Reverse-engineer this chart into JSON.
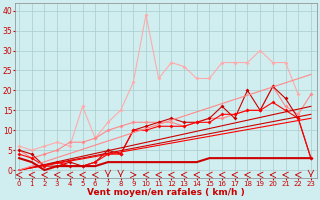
{
  "bg_color": "#d0eef0",
  "grid_color": "#aacccc",
  "xlabel": "Vent moyen/en rafales ( km/h )",
  "xlabel_color": "#cc0000",
  "xlabel_fontsize": 6.5,
  "xtick_fontsize": 5.0,
  "ytick_fontsize": 5.5,
  "ylim": [
    -2,
    42
  ],
  "xlim": [
    -0.3,
    23.5
  ],
  "xticks": [
    0,
    1,
    2,
    3,
    4,
    5,
    6,
    7,
    8,
    9,
    10,
    11,
    12,
    13,
    14,
    15,
    16,
    17,
    18,
    19,
    20,
    21,
    22,
    23
  ],
  "yticks": [
    0,
    5,
    10,
    15,
    20,
    25,
    30,
    35,
    40
  ],
  "series": [
    {
      "color": "#ffaaaa",
      "x": [
        0,
        1,
        2,
        3,
        4,
        5,
        6,
        7,
        8,
        9,
        10,
        11,
        12,
        13,
        14,
        15,
        16,
        17,
        18,
        19,
        20,
        21,
        22
      ],
      "y": [
        6,
        5,
        6,
        7,
        6,
        16,
        8,
        12,
        15,
        22,
        39,
        23,
        27,
        26,
        23,
        23,
        27,
        27,
        27,
        30,
        27,
        27,
        19
      ],
      "marker": "D",
      "ms": 2.0,
      "lw": 0.8
    },
    {
      "color": "#ff8888",
      "x": [
        0,
        1,
        2,
        3,
        4,
        5,
        6,
        7,
        8,
        9,
        10,
        11,
        12,
        13,
        14,
        15,
        16,
        17,
        18,
        19,
        20,
        21,
        22,
        23
      ],
      "y": [
        5,
        3,
        4,
        5,
        7,
        7,
        8,
        10,
        11,
        12,
        12,
        12,
        12,
        11,
        12,
        13,
        13,
        14,
        15,
        15,
        21,
        16,
        14,
        19
      ],
      "marker": "D",
      "ms": 2.0,
      "lw": 0.8
    },
    {
      "color": "#cc0000",
      "x": [
        0,
        1,
        2,
        3,
        4,
        5,
        6,
        7,
        8,
        9,
        10,
        11,
        12,
        13,
        14,
        15,
        16,
        17,
        18,
        19,
        20,
        21,
        22,
        23
      ],
      "y": [
        5,
        4,
        1,
        1,
        2,
        1,
        2,
        5,
        4,
        10,
        11,
        12,
        13,
        12,
        12,
        13,
        16,
        13,
        20,
        15,
        21,
        18,
        13,
        3
      ],
      "marker": "D",
      "ms": 2.0,
      "lw": 0.8
    },
    {
      "color": "#ff0000",
      "x": [
        0,
        1,
        2,
        3,
        4,
        5,
        6,
        7,
        8,
        9,
        10,
        11,
        12,
        13,
        14,
        15,
        16,
        17,
        18,
        19,
        20,
        21,
        22,
        23
      ],
      "y": [
        4,
        3,
        1,
        2,
        1,
        1,
        2,
        4,
        4,
        10,
        10,
        11,
        11,
        11,
        12,
        12,
        14,
        14,
        15,
        15,
        17,
        15,
        13,
        3
      ],
      "marker": "D",
      "ms": 2.0,
      "lw": 0.8
    },
    {
      "color": "#cc0000",
      "x": [
        0,
        23
      ],
      "y": [
        0,
        16
      ],
      "marker": null,
      "ms": 0,
      "lw": 0.8,
      "linestyle": "solid"
    },
    {
      "color": "#cc0000",
      "x": [
        0,
        23
      ],
      "y": [
        0,
        14
      ],
      "marker": null,
      "ms": 0,
      "lw": 0.8,
      "linestyle": "solid"
    },
    {
      "color": "#ff0000",
      "x": [
        0,
        23
      ],
      "y": [
        0,
        13
      ],
      "marker": null,
      "ms": 0,
      "lw": 0.8,
      "linestyle": "solid"
    },
    {
      "color": "#ff8888",
      "x": [
        0,
        23
      ],
      "y": [
        0,
        24
      ],
      "marker": null,
      "ms": 0,
      "lw": 0.8,
      "linestyle": "solid"
    },
    {
      "color": "#cc0000",
      "x": [
        0,
        1,
        2,
        3,
        4,
        5,
        6,
        7,
        8,
        9,
        10,
        11,
        12,
        13,
        14,
        15,
        16,
        17,
        18,
        19,
        20,
        21,
        22,
        23
      ],
      "y": [
        3,
        2,
        0,
        1,
        1,
        1,
        1,
        2,
        2,
        2,
        2,
        2,
        2,
        2,
        2,
        3,
        3,
        3,
        3,
        3,
        3,
        3,
        3,
        3
      ],
      "marker": null,
      "ms": 0,
      "lw": 1.5,
      "linestyle": "solid"
    }
  ],
  "arrow_color": "#cc0000",
  "arrow_dirs": [
    "l",
    "l",
    "l",
    "l",
    "l",
    "l",
    "l",
    "d",
    "d",
    "r",
    "l",
    "l",
    "l",
    "l",
    "l",
    "l",
    "l",
    "l",
    "l",
    "l",
    "l",
    "l",
    "l",
    "d"
  ]
}
